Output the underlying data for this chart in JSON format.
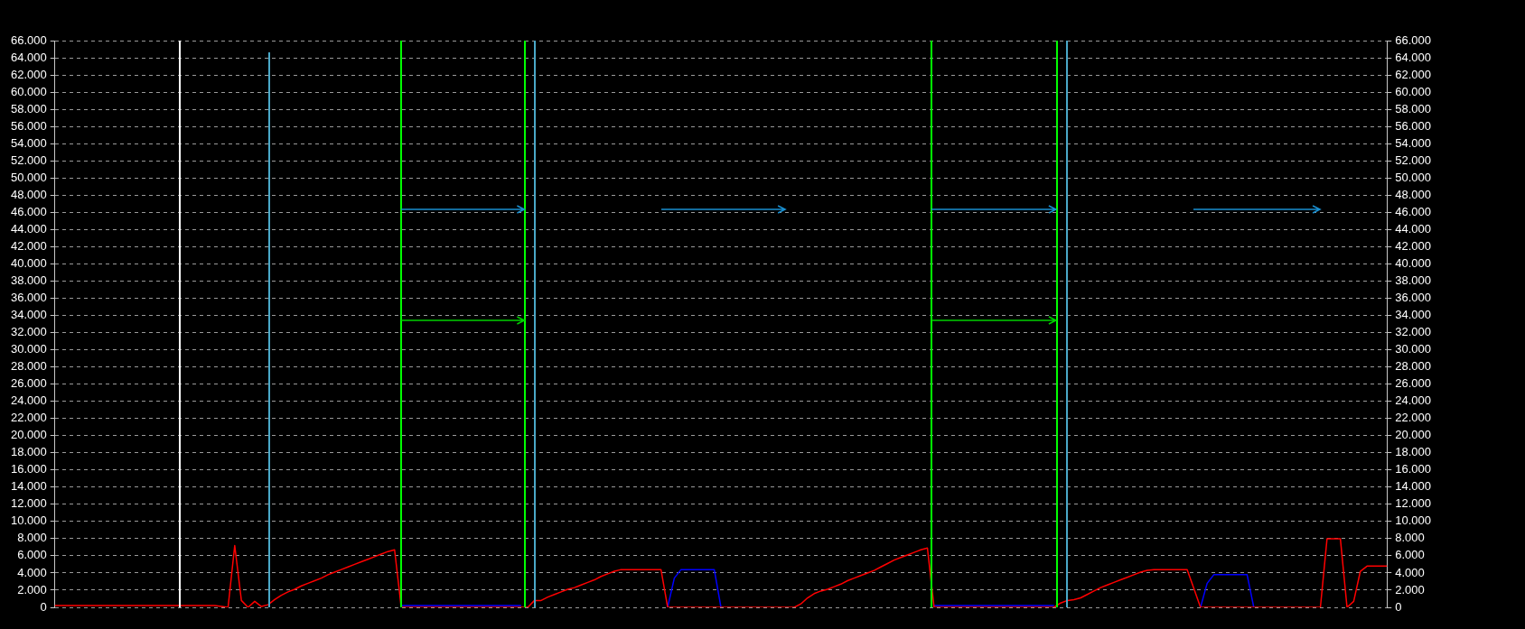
{
  "chart_data": {
    "type": "line",
    "ylim": [
      0,
      66000
    ],
    "categories": [
      null,
      null,
      null,
      null,
      null,
      null,
      null,
      null,
      null,
      null,
      null,
      null,
      null,
      null,
      null,
      null,
      null,
      null,
      null,
      null,
      null,
      null,
      null,
      null,
      null,
      null,
      null,
      null,
      null,
      null,
      null,
      null,
      null,
      null,
      null,
      null,
      null,
      null,
      null,
      null,
      null,
      null,
      null,
      null,
      null,
      null,
      null,
      null,
      null,
      null,
      null,
      null,
      null,
      null,
      null,
      null,
      null,
      null,
      null,
      null,
      null,
      null,
      null,
      null,
      null,
      null,
      null,
      null,
      null,
      null,
      null,
      null,
      null,
      null,
      null,
      null,
      null,
      null,
      null,
      null,
      null,
      null,
      null,
      null,
      null,
      null,
      null,
      null,
      null,
      null,
      null,
      null,
      null,
      null,
      null,
      null,
      null,
      null,
      null,
      null,
      null,
      null,
      null,
      null,
      null,
      null,
      null,
      null,
      null,
      null,
      null,
      null,
      null,
      null,
      null,
      null,
      null,
      null,
      null,
      null,
      null,
      null,
      null,
      null,
      null,
      null,
      null,
      null,
      null,
      null,
      null,
      null,
      null,
      null,
      null,
      null,
      null,
      null,
      null,
      null,
      null,
      null,
      null,
      null,
      null,
      null,
      null,
      null,
      null,
      null,
      null,
      null,
      null,
      null,
      null,
      null,
      null,
      null,
      null,
      null,
      null,
      null,
      null,
      null,
      null,
      null,
      null,
      null,
      null,
      null,
      null,
      null,
      null,
      null,
      null,
      null,
      null,
      null,
      null,
      null,
      null,
      null,
      null,
      null,
      null,
      null,
      null,
      null,
      null,
      null,
      null,
      null,
      null,
      null,
      null,
      null,
      null,
      null,
      null,
      null,
      null
    ],
    "yticks": [
      0,
      {
        "value": 2000,
        "label": "2.000"
      },
      {
        "value": 4000,
        "label": "4.000"
      },
      {
        "value": 6000,
        "label": "6.000"
      },
      {
        "value": 8000,
        "label": "8.000"
      },
      {
        "value": 10000,
        "label": "10.000"
      },
      {
        "value": 12000,
        "label": "12.000"
      },
      {
        "value": 14000,
        "label": "14.000"
      },
      {
        "value": 16000,
        "label": "16.000"
      },
      {
        "value": 18000,
        "label": "18.000"
      },
      {
        "value": 20000,
        "label": "20.000"
      },
      {
        "value": 22000,
        "label": "22.000"
      },
      {
        "value": 24000,
        "label": "24.000"
      },
      {
        "value": 26000,
        "label": "26.000"
      },
      {
        "value": 28000,
        "label": "28.000"
      },
      {
        "value": 30000,
        "label": "30.000"
      },
      {
        "value": 32000,
        "label": "32.000"
      },
      {
        "value": 34000,
        "label": "34.000"
      },
      {
        "value": 36000,
        "label": "36.000"
      },
      {
        "value": 38000,
        "label": "38.000"
      },
      {
        "value": 40000,
        "label": "40.000"
      },
      {
        "value": 42000,
        "label": "42.000"
      },
      {
        "value": 44000,
        "label": "44.000"
      },
      {
        "value": 46000,
        "label": "46.000"
      },
      {
        "value": 48000,
        "label": "48.000"
      },
      {
        "value": 50000,
        "label": "50.000"
      },
      {
        "value": 52000,
        "label": "52.000"
      },
      {
        "value": 54000,
        "label": "54.000"
      },
      {
        "value": 56000,
        "label": "56.000"
      },
      {
        "value": 58000,
        "label": "58.000"
      },
      {
        "value": 60000,
        "label": "60.000"
      },
      {
        "value": 62000,
        "label": "62.000"
      },
      {
        "value": 64000,
        "label": "64.000"
      },
      {
        "value": 66000,
        "label": "66.000"
      }
    ],
    "y2lim": [
      0,
      66000
    ],
    "y2ticks": [
      0,
      {
        "value": 2000,
        "label": "2.000"
      },
      {
        "value": 4000,
        "label": "4.000"
      },
      {
        "value": 6000,
        "label": "6.000"
      },
      {
        "value": 8000,
        "label": "8.000"
      },
      {
        "value": 10000,
        "label": "10.000"
      },
      {
        "value": 12000,
        "label": "12.000"
      },
      {
        "value": 14000,
        "label": "14.000"
      },
      {
        "value": 16000,
        "label": "16.000"
      },
      {
        "value": 18000,
        "label": "18.000"
      },
      {
        "value": 20000,
        "label": "20.000"
      },
      {
        "value": 22000,
        "label": "22.000"
      },
      {
        "value": 24000,
        "label": "24.000"
      },
      {
        "value": 26000,
        "label": "26.000"
      },
      {
        "value": 28000,
        "label": "28.000"
      },
      {
        "value": 30000,
        "label": "30.000"
      },
      {
        "value": 32000,
        "label": "32.000"
      },
      {
        "value": 34000,
        "label": "34.000"
      },
      {
        "value": 36000,
        "label": "36.000"
      },
      {
        "value": 38000,
        "label": "38.000"
      },
      {
        "value": 40000,
        "label": "40.000"
      },
      {
        "value": 42000,
        "label": "42.000"
      },
      {
        "value": 44000,
        "label": "44.000"
      },
      {
        "value": 46000,
        "label": "46.000"
      },
      {
        "value": 48000,
        "label": "48.000"
      },
      {
        "value": 50000,
        "label": "50.000"
      },
      {
        "value": 52000,
        "label": "52.000"
      },
      {
        "value": 54000,
        "label": "54.000"
      },
      {
        "value": 56000,
        "label": "56.000"
      },
      {
        "value": 58000,
        "label": "58.000"
      },
      {
        "value": 60000,
        "label": "60.000"
      },
      {
        "value": 62000,
        "label": "62.000"
      },
      {
        "value": 64000,
        "label": "64.000"
      },
      {
        "value": 66000,
        "label": "66.000"
      }
    ],
    "tick_labels": "y",
    "grid": "y",
    "legend": false,
    "marker": "none",
    "line_style": "solid",
    "series": [
      {
        "color": "#ff0000",
        "values": [
          200,
          200,
          200,
          200,
          200,
          200,
          200,
          200,
          200,
          200,
          200,
          200,
          200,
          200,
          200,
          200,
          200,
          200,
          200,
          200,
          200,
          200,
          200,
          200,
          200,
          100,
          0,
          7200,
          800,
          0,
          700,
          100,
          300,
          900,
          1400,
          1800,
          2100,
          2500,
          2800,
          3100,
          3400,
          3800,
          4100,
          4400,
          4700,
          5000,
          5300,
          5600,
          5900,
          6200,
          6500,
          6700,
          0,
          0,
          0,
          0,
          0,
          0,
          0,
          0,
          0,
          0,
          0,
          0,
          0,
          0,
          0,
          0,
          0,
          0,
          0,
          0,
          800,
          800,
          1200,
          1500,
          1800,
          2100,
          2300,
          2600,
          2900,
          3200,
          3600,
          3900,
          4200,
          4400,
          4400,
          4400,
          4400,
          4400,
          4400,
          4400,
          0,
          0,
          0,
          0,
          0,
          0,
          0,
          0,
          0,
          0,
          0,
          0,
          0,
          0,
          0,
          0,
          0,
          0,
          0,
          0,
          400,
          1100,
          1600,
          1900,
          2100,
          2400,
          2700,
          3100,
          3400,
          3700,
          4000,
          4300,
          4700,
          5100,
          5500,
          5800,
          6100,
          6400,
          6700,
          6900,
          0,
          0,
          0,
          0,
          0,
          0,
          0,
          0,
          0,
          0,
          0,
          0,
          0,
          0,
          0,
          0,
          0,
          0,
          0,
          500,
          800,
          900,
          1100,
          1500,
          1900,
          2300,
          2600,
          2900,
          3200,
          3500,
          3800,
          4100,
          4300,
          4400,
          4400,
          4400,
          4400,
          4400,
          4400,
          2200,
          0,
          0,
          0,
          0,
          0,
          0,
          0,
          0,
          0,
          0,
          0,
          0,
          0,
          0,
          0,
          0,
          0,
          0,
          0,
          8000,
          8000,
          8000,
          0,
          700,
          4200,
          4800,
          4800,
          4800,
          4800
        ]
      },
      {
        "color": "#0000ff",
        "values": [
          null,
          null,
          null,
          null,
          null,
          null,
          null,
          null,
          null,
          null,
          null,
          null,
          null,
          null,
          null,
          null,
          null,
          null,
          null,
          null,
          null,
          null,
          null,
          null,
          null,
          null,
          null,
          null,
          null,
          null,
          null,
          null,
          null,
          null,
          null,
          null,
          null,
          null,
          null,
          null,
          null,
          null,
          null,
          null,
          null,
          null,
          null,
          null,
          null,
          null,
          null,
          null,
          200,
          200,
          200,
          200,
          200,
          200,
          200,
          200,
          200,
          200,
          200,
          200,
          200,
          200,
          200,
          200,
          200,
          200,
          200,
          null,
          null,
          null,
          null,
          null,
          null,
          null,
          null,
          null,
          null,
          null,
          null,
          null,
          null,
          null,
          null,
          null,
          null,
          null,
          null,
          null,
          0,
          3400,
          4400,
          4400,
          4400,
          4400,
          4400,
          4400,
          0,
          null,
          null,
          null,
          null,
          null,
          null,
          null,
          null,
          null,
          null,
          null,
          null,
          null,
          null,
          null,
          null,
          null,
          null,
          null,
          null,
          null,
          null,
          null,
          null,
          null,
          null,
          null,
          null,
          null,
          null,
          null,
          200,
          200,
          200,
          200,
          200,
          200,
          200,
          200,
          200,
          200,
          200,
          200,
          200,
          200,
          200,
          200,
          200,
          200,
          200,
          null,
          null,
          null,
          null,
          null,
          null,
          null,
          null,
          null,
          null,
          null,
          null,
          null,
          null,
          null,
          null,
          null,
          null,
          null,
          null,
          null,
          0,
          2800,
          3800,
          3800,
          3800,
          3800,
          3800,
          3800,
          0,
          null,
          null,
          null,
          null,
          null,
          null,
          null,
          null,
          null,
          null,
          null,
          null,
          null,
          null,
          null,
          null,
          null,
          null,
          null,
          null
        ]
      }
    ]
  }
}
